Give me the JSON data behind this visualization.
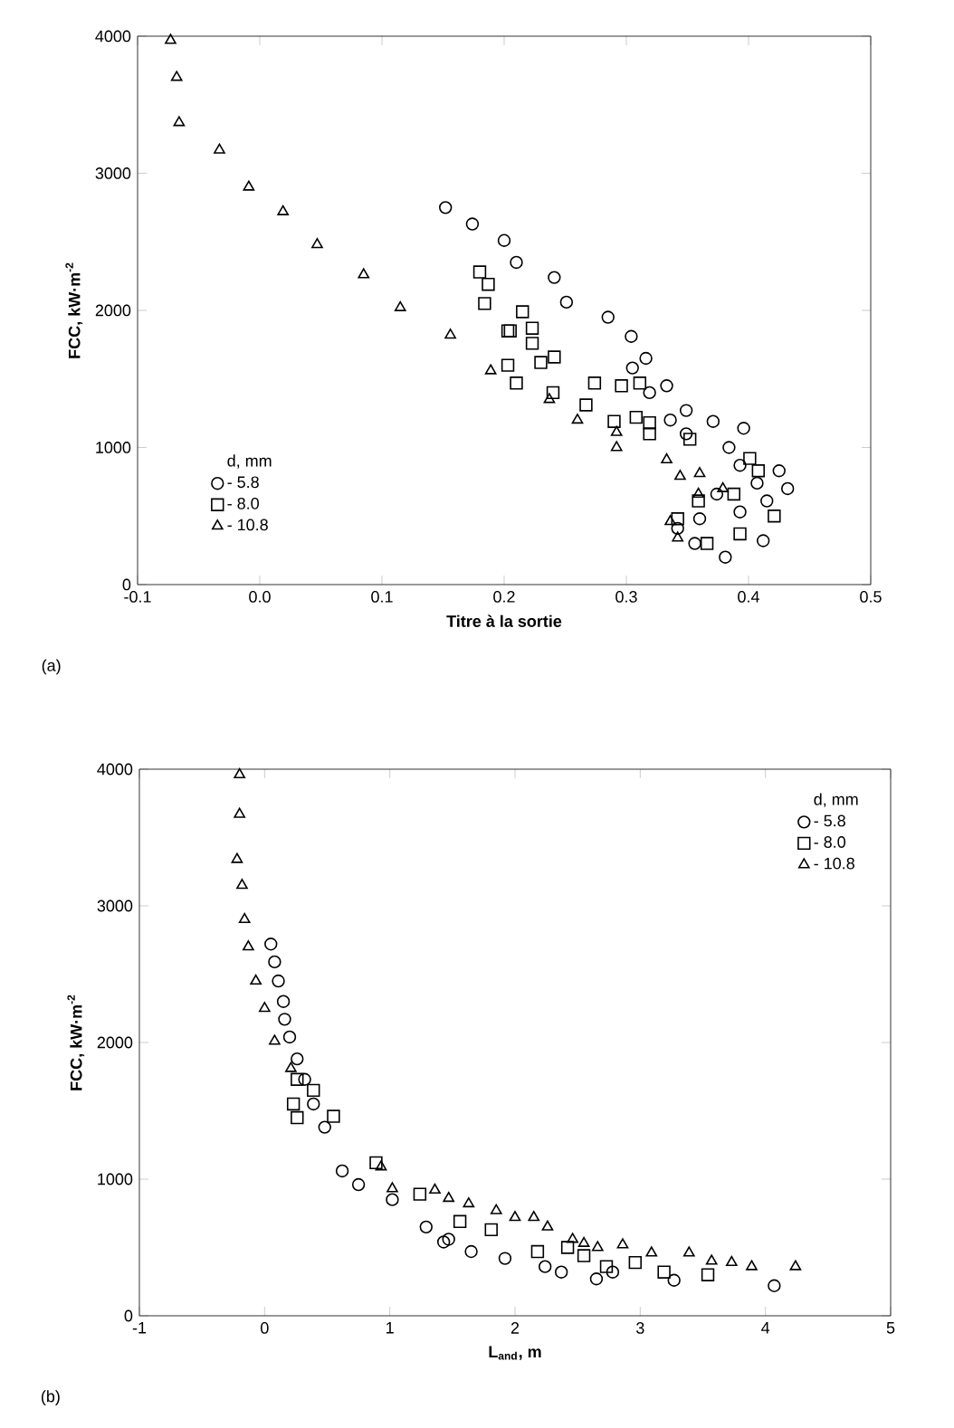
{
  "chart_data": [
    {
      "type": "scatter",
      "xlabel": "Titre à la sortie",
      "ylabel": "FCC, kW·m$^{-2}$",
      "legend_title": "d, mm",
      "legend": "bottom left",
      "grid": false,
      "annotations": [
        "(a)"
      ],
      "xlim": [
        -0.1,
        0.5
      ],
      "ylim": [
        0,
        4000
      ],
      "xticks": [
        -0.1,
        {
          "value": 0,
          "label": "0.0"
        },
        0.1,
        0.2,
        0.3,
        0.4,
        0.5
      ],
      "yticks": [
        0,
        1000,
        2000,
        3000,
        4000
      ],
      "series": [
        {
          "name": "- 5.8",
          "color": "#000000",
          "marker": "circle",
          "x": [
            0.152,
            0.174,
            0.2,
            0.21,
            0.241,
            0.251,
            0.285,
            0.304,
            0.316,
            0.305,
            0.333,
            0.319,
            0.349,
            0.336,
            0.371,
            0.396,
            0.349,
            0.412,
            0.384,
            0.393,
            0.407,
            0.425,
            0.432,
            0.374,
            0.36,
            0.381,
            0.393,
            0.356,
            0.342,
            0.415
          ],
          "values": [
            2750,
            2630,
            2510,
            2350,
            2240,
            2060,
            1950,
            1810,
            1650,
            1580,
            1450,
            1400,
            1270,
            1200,
            1190,
            1140,
            1100,
            320,
            1000,
            870,
            740,
            830,
            700,
            660,
            480,
            200,
            530,
            300,
            410,
            610
          ]
        },
        {
          "name": "- 8.0",
          "color": "#000000",
          "marker": "square",
          "x": [
            0.18,
            0.187,
            0.184,
            0.203,
            0.215,
            0.205,
            0.223,
            0.223,
            0.23,
            0.241,
            0.203,
            0.21,
            0.274,
            0.267,
            0.296,
            0.311,
            0.29,
            0.308,
            0.319,
            0.319,
            0.24,
            0.352,
            0.342,
            0.366,
            0.388,
            0.408,
            0.421,
            0.393,
            0.401,
            0.359
          ],
          "values": [
            2280,
            2190,
            2050,
            1850,
            1990,
            1850,
            1870,
            1760,
            1620,
            1660,
            1600,
            1470,
            1470,
            1310,
            1450,
            1470,
            1190,
            1220,
            1180,
            1100,
            1400,
            1060,
            480,
            300,
            660,
            830,
            500,
            370,
            920,
            610
          ]
        },
        {
          "name": "- 10.8",
          "color": "#000000",
          "marker": "triangle",
          "x": [
            -0.073,
            -0.068,
            -0.066,
            -0.033,
            -0.009,
            0.019,
            0.047,
            0.085,
            0.115,
            0.156,
            0.189,
            0.237,
            0.26,
            0.292,
            0.292,
            0.333,
            0.344,
            0.36,
            0.359,
            0.336,
            0.342,
            0.379
          ],
          "values": [
            3970,
            3700,
            3370,
            3170,
            2900,
            2720,
            2480,
            2260,
            2020,
            1820,
            1560,
            1350,
            1200,
            1110,
            1000,
            910,
            790,
            810,
            660,
            460,
            340,
            700
          ]
        }
      ]
    },
    {
      "type": "scatter",
      "xlabel": "L$_{and}$, m",
      "ylabel": "FCC, kW·m$^{-2}$",
      "legend_title": "d, mm",
      "legend": "top right",
      "grid": false,
      "annotations": [
        "(b)"
      ],
      "xlim": [
        -1,
        5
      ],
      "ylim": [
        0,
        4000
      ],
      "xticks": [
        -1,
        0,
        1,
        2,
        3,
        4,
        5
      ],
      "yticks": [
        0,
        1000,
        2000,
        3000,
        4000
      ],
      "series": [
        {
          "name": "- 5.8",
          "color": "#000000",
          "marker": "circle",
          "x": [
            0.05,
            0.08,
            0.11,
            0.15,
            0.16,
            0.2,
            0.26,
            0.32,
            0.39,
            0.48,
            0.62,
            0.75,
            1.02,
            1.29,
            1.47,
            1.65,
            1.43,
            1.92,
            2.24,
            2.37,
            2.65,
            2.78,
            3.27,
            4.07
          ],
          "values": [
            2720,
            2590,
            2450,
            2300,
            2170,
            2040,
            1880,
            1730,
            1550,
            1380,
            1060,
            960,
            850,
            650,
            560,
            470,
            540,
            420,
            360,
            320,
            270,
            320,
            260,
            220
          ]
        },
        {
          "name": "- 8.0",
          "color": "#000000",
          "marker": "square",
          "x": [
            0.26,
            0.23,
            0.55,
            0.26,
            0.39,
            0.89,
            1.24,
            1.56,
            1.81,
            2.18,
            2.42,
            2.55,
            2.73,
            2.96,
            3.19,
            3.54
          ],
          "values": [
            1730,
            1550,
            1460,
            1450,
            1650,
            1120,
            890,
            690,
            630,
            470,
            500,
            440,
            360,
            390,
            320,
            300
          ]
        },
        {
          "name": "- 10.8",
          "color": "#000000",
          "marker": "triangle",
          "x": [
            -0.2,
            -0.2,
            -0.22,
            -0.18,
            -0.16,
            -0.13,
            -0.07,
            0.0,
            0.08,
            0.21,
            0.93,
            1.02,
            1.36,
            1.47,
            1.63,
            1.85,
            2.0,
            2.15,
            2.26,
            2.46,
            2.55,
            2.66,
            2.86,
            3.09,
            3.39,
            3.57,
            3.73,
            3.89,
            4.24
          ],
          "values": [
            3960,
            3670,
            3340,
            3150,
            2900,
            2700,
            2450,
            2250,
            2010,
            1810,
            1090,
            930,
            920,
            860,
            820,
            770,
            720,
            720,
            650,
            560,
            530,
            500,
            520,
            460,
            460,
            400,
            390,
            360,
            360
          ]
        }
      ]
    }
  ]
}
